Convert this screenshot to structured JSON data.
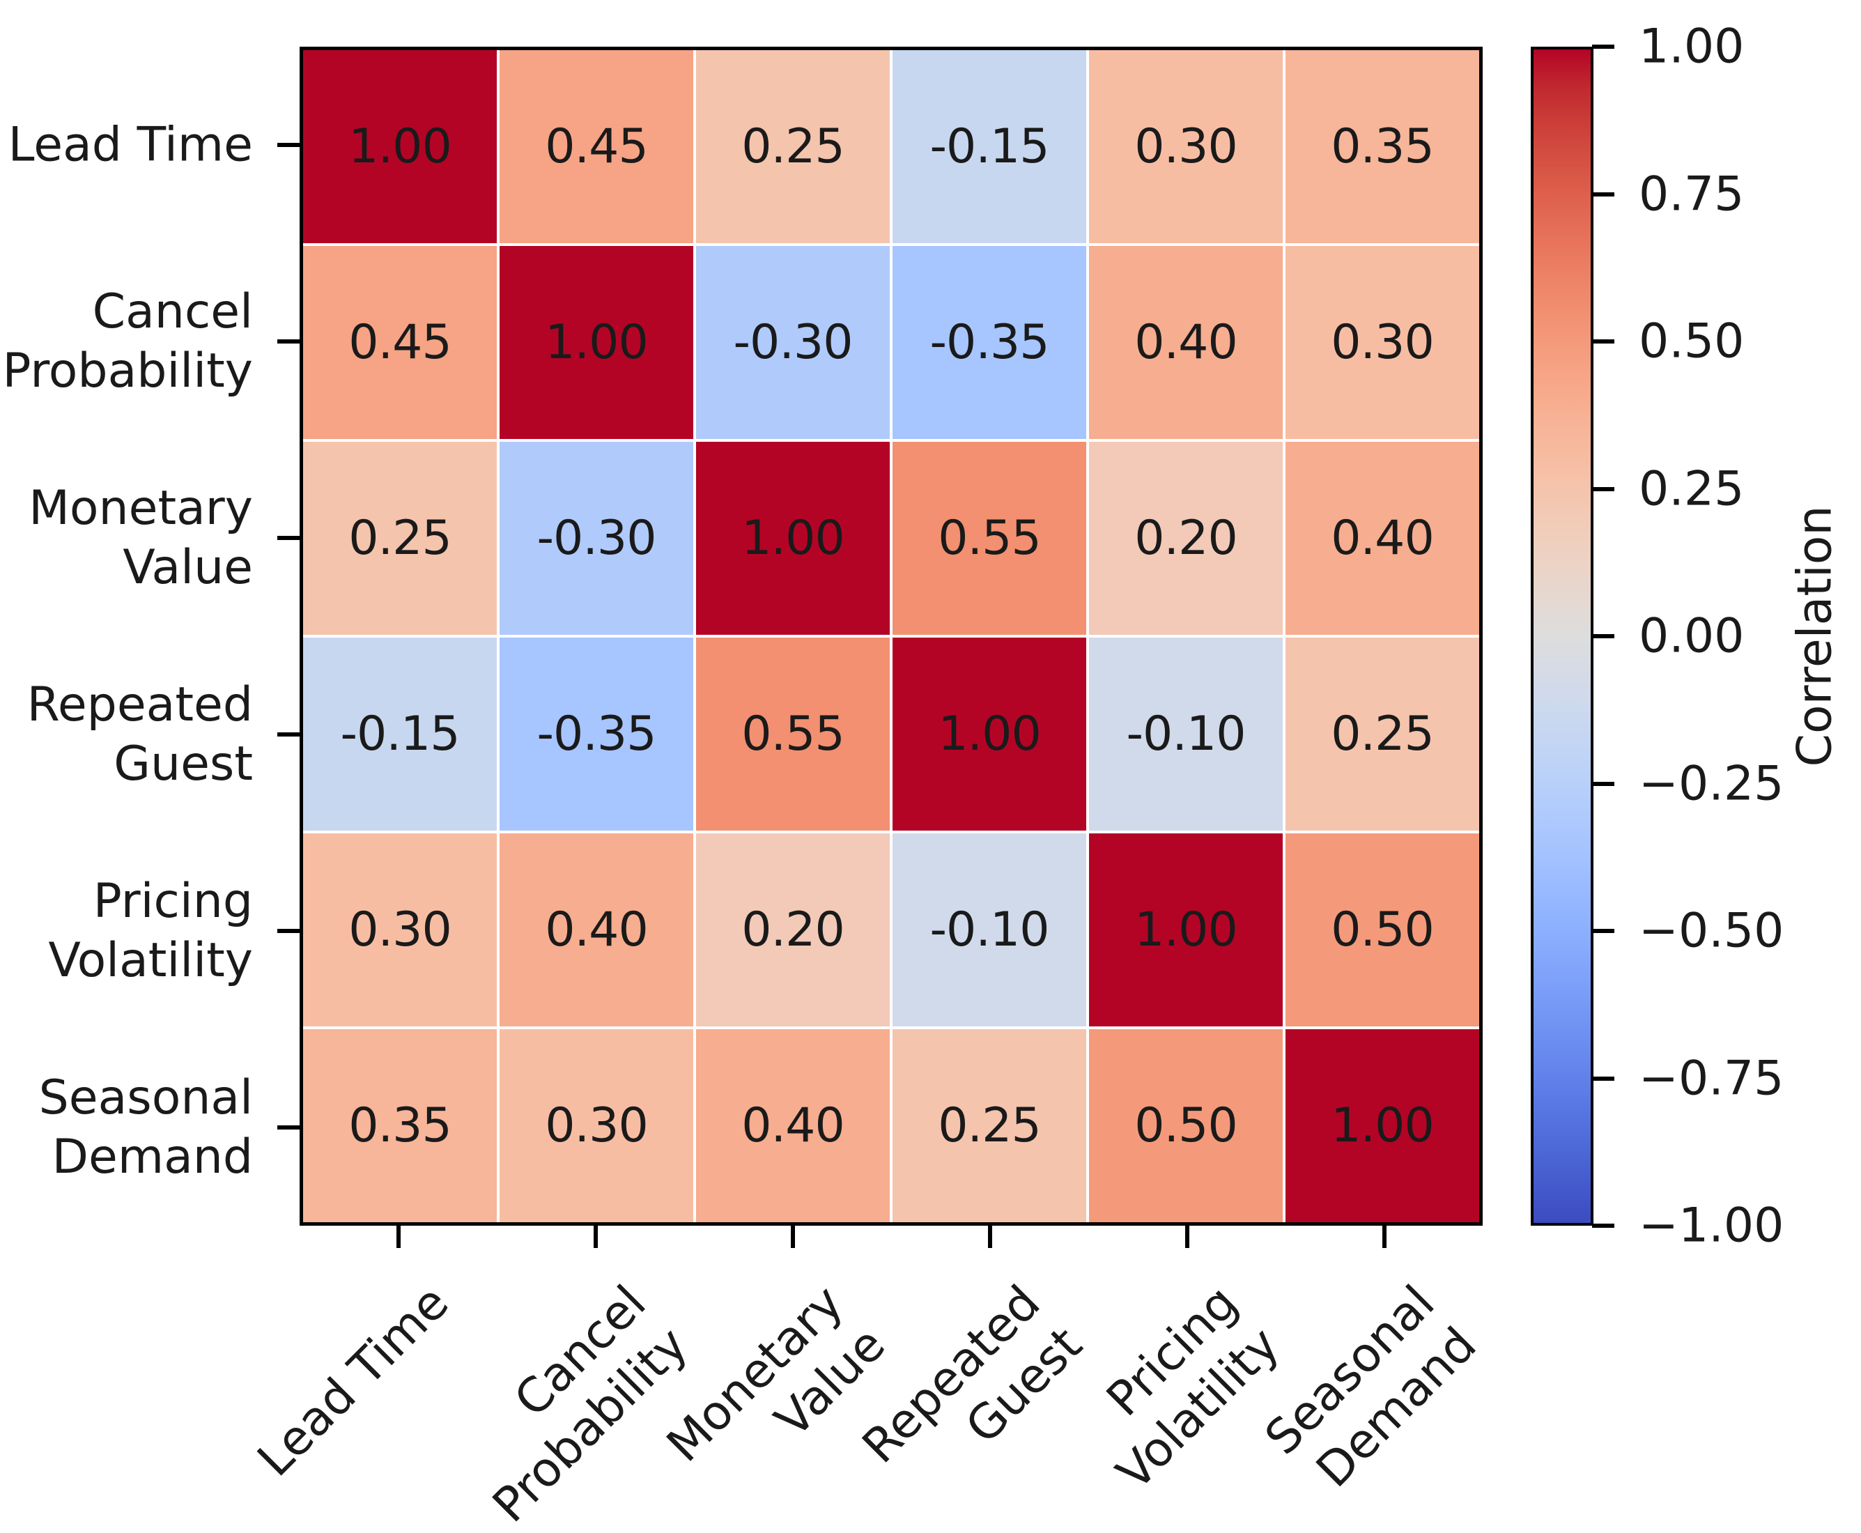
{
  "chart_data": {
    "type": "heatmap",
    "title": "",
    "categories": [
      "Lead Time",
      "Cancel Probability",
      "Monetary Value",
      "Repeated Guest",
      "Pricing Volatility",
      "Seasonal Demand"
    ],
    "row_labels": [
      [
        "Lead Time"
      ],
      [
        "Cancel",
        "Probability"
      ],
      [
        "Monetary",
        "Value"
      ],
      [
        "Repeated",
        "Guest"
      ],
      [
        "Pricing",
        "Volatility"
      ],
      [
        "Seasonal",
        "Demand"
      ]
    ],
    "col_labels": [
      [
        "Lead Time"
      ],
      [
        "Cancel",
        "Probability"
      ],
      [
        "Monetary",
        "Value"
      ],
      [
        "Repeated",
        "Guest"
      ],
      [
        "Pricing",
        "Volatility"
      ],
      [
        "Seasonal",
        "Demand"
      ]
    ],
    "matrix": [
      [
        1.0,
        0.45,
        0.25,
        -0.15,
        0.3,
        0.35
      ],
      [
        0.45,
        1.0,
        -0.3,
        -0.35,
        0.4,
        0.3
      ],
      [
        0.25,
        -0.3,
        1.0,
        0.55,
        0.2,
        0.4
      ],
      [
        -0.15,
        -0.35,
        0.55,
        1.0,
        -0.1,
        0.25
      ],
      [
        0.3,
        0.4,
        0.2,
        -0.1,
        1.0,
        0.5
      ],
      [
        0.35,
        0.3,
        0.4,
        0.25,
        0.5,
        1.0
      ]
    ],
    "vmin": -1,
    "vmax": 1,
    "value_decimals": 2,
    "grid_color": "#ffffff",
    "text_color": "#1a1a1a",
    "border_color": "#000000",
    "colorbar": {
      "label": "Correlation",
      "tick_labels": [
        "1.00",
        "0.75",
        "0.50",
        "0.25",
        "0.00",
        "−0.25",
        "−0.50",
        "−0.75",
        "−1.00"
      ],
      "tick_values": [
        1.0,
        0.75,
        0.5,
        0.25,
        0.0,
        -0.25,
        -0.5,
        -0.75,
        -1.0
      ]
    },
    "colormap": {
      "name": "coolwarm",
      "stops": [
        "#3b4cc0",
        "#445acc",
        "#4d68d7",
        "#5775e1",
        "#6282ea",
        "#6c8ef1",
        "#779af7",
        "#82a5fb",
        "#8db0fe",
        "#98b9ff",
        "#a3c2ff",
        "#aec9fd",
        "#b8d0f9",
        "#c2d5f4",
        "#ccd9ee",
        "#d5dbe6",
        "#dddddd",
        "#e5d8d1",
        "#ecd3c5",
        "#f1ccb9",
        "#f5c4ad",
        "#f7bba0",
        "#f7b194",
        "#f7a687",
        "#f49a7b",
        "#f18d6f",
        "#ec7f63",
        "#e57058",
        "#de604d",
        "#d55042",
        "#cb3e38",
        "#c0282f",
        "#b40426"
      ]
    }
  }
}
